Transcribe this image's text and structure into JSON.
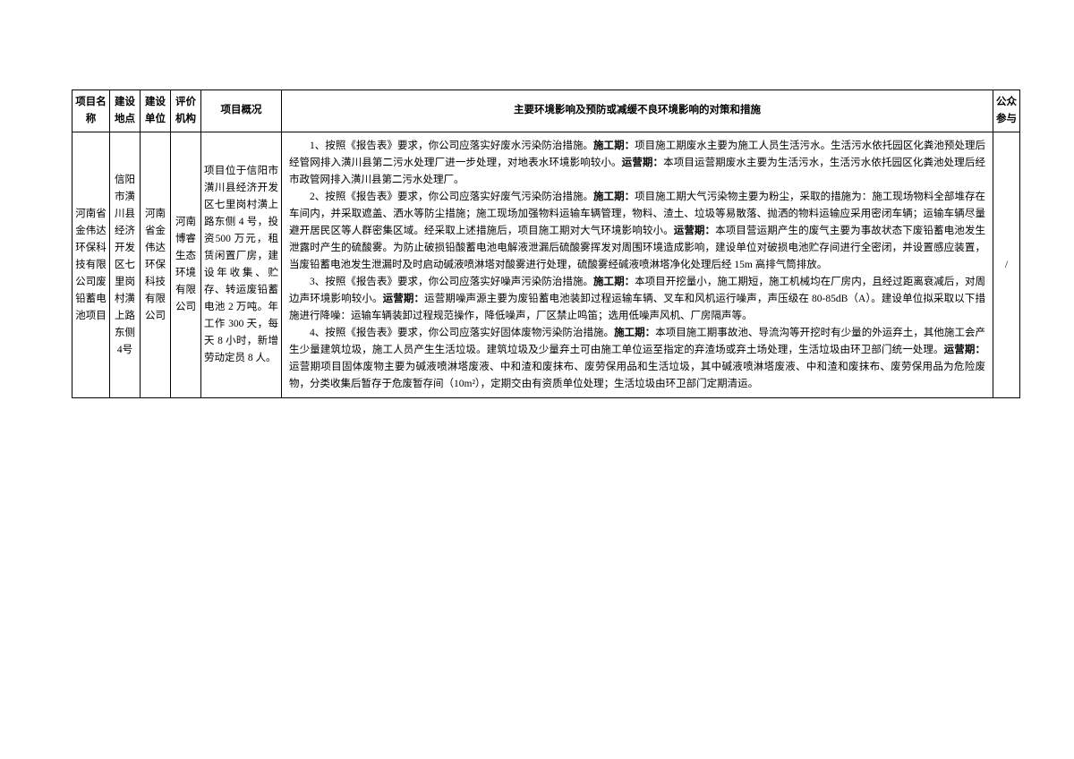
{
  "table": {
    "headers": {
      "project_name": "项目名称",
      "location": "建设地点",
      "build_unit": "建设单位",
      "eval_agency": "评价机构",
      "overview": "项目概况",
      "impact": "主要环境影响及预防或减缓不良环境影响的对策和措施",
      "public": "公众参与"
    },
    "row": {
      "project_name": "河南省金伟达环保科技有限公司废铅蓄电池项目",
      "location": "信阳市潢川县经济开发区七里岗村潢上路东侧4号",
      "build_unit": "河南省金伟达环保科技有限公司",
      "eval_agency": "河南博睿生态环境有限公司",
      "overview": "项目位于信阳市潢川县经济开发区七里岗村潢上路东侧 4 号，投资500 万元，租赁闲置厂房，建设年收集、贮存、转运废铅蓄电池 2 万吨。年工作 300 天，每天 8 小时，新增劳动定员 8 人。",
      "public": "/",
      "impact": {
        "p1_prefix": "1、按照《报告表》要求，你公司应落实好废水污染防治措施。",
        "p1_construction_label": "施工期：",
        "p1_construction": "项目施工期废水主要为施工人员生活污水。生活污水依托园区化粪池预处理后经管网排入潢川县第二污水处理厂进一步处理，对地表水环境影响较小。",
        "p1_operation_label": "运营期：",
        "p1_operation": "本项目运营期废水主要为生活污水，生活污水依托园区化粪池处理后经市政管网排入潢川县第二污水处理厂。",
        "p2_prefix": "2、按照《报告表》要求，你公司应落实好废气污染防治措施。",
        "p2_construction_label": "施工期：",
        "p2_construction": "项目施工期大气污染物主要为粉尘，采取的措施为：施工现场物料全部堆存在车间内，并采取遮盖、洒水等防尘措施；施工现场加强物料运输车辆管理，物料、渣土、垃圾等易散落、抛洒的物料运输应采用密闭车辆；运输车辆尽量避开居民区等人群密集区域。经采取上述措施后，项目施工期对大气环境影响较小。",
        "p2_operation_label": "运营期：",
        "p2_operation": "本项目营运期产生的废气主要为事故状态下废铅蓄电池发生泄露时产生的硫酸雾。为防止破损铅酸蓄电池电解液泄漏后硫酸雾挥发对周围环境造成影响，建设单位对破损电池贮存间进行全密闭，并设置感应装置，当废铅蓄电池发生泄漏时及时启动碱液喷淋塔对酸雾进行处理，硫酸雾经碱液喷淋塔净化处理后经 15m 高排气筒排放。",
        "p3_prefix": "3、按照《报告表》要求，你公司应落实好噪声污染防治措施。",
        "p3_construction_label": "施工期：",
        "p3_construction": "本项目开挖量小，施工期短，施工机械均在厂房内，且经过距离衰减后，对周边声环境影响较小。",
        "p3_operation_label": "运营期：",
        "p3_operation": "运营期噪声源主要为废铅蓄电池装卸过程运输车辆、叉车和风机运行噪声，声压级在 80-85dB（A）。建设单位拟采取以下措施进行降噪：运输车辆装卸过程规范操作，降低噪声，厂区禁止鸣笛；选用低噪声风机、厂房隔声等。",
        "p4_prefix": "4、按照《报告表》要求，你公司应落实好固体废物污染防治措施。",
        "p4_construction_label": "施工期：",
        "p4_construction": "本项目施工期事故池、导流沟等开挖时有少量的外运弃土，其他施工会产生少量建筑垃圾，施工人员产生生活垃圾。建筑垃圾及少量弃土可由施工单位运至指定的弃渣场或弃土场处理，生活垃圾由环卫部门统一处理。",
        "p4_operation_label": "运营期：",
        "p4_operation": "运营期项目固体废物主要为碱液喷淋塔废液、中和渣和废抹布、废劳保用品和生活垃圾，其中碱液喷淋塔废液、中和渣和废抹布、废劳保用品为危险废物，分类收集后暂存于危废暂存间（10m²），定期交由有资质单位处理；生活垃圾由环卫部门定期清运。"
      }
    }
  },
  "styling": {
    "border_color": "#000000",
    "background_color": "#ffffff",
    "text_color": "#000000",
    "font_family": "SimSun",
    "base_font_size": 11.5,
    "line_height": 1.65
  }
}
